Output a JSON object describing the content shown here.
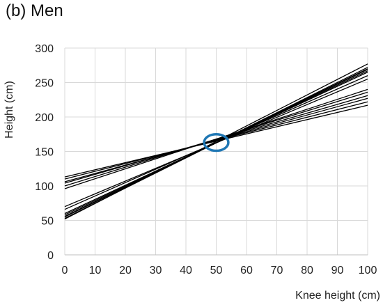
{
  "chart_data": {
    "type": "line",
    "title": "(b) Men",
    "xlabel": "Knee height (cm)",
    "ylabel": "Height (cm)",
    "xlim": [
      0,
      100
    ],
    "ylim": [
      0,
      300
    ],
    "xticks": [
      0,
      10,
      20,
      30,
      40,
      50,
      60,
      70,
      80,
      90,
      100
    ],
    "yticks": [
      0,
      50,
      100,
      150,
      200,
      250,
      300
    ],
    "grid": true,
    "legend": "none",
    "series": [
      {
        "x": [
          0,
          100
        ],
        "y": [
          113,
          217
        ]
      },
      {
        "x": [
          0,
          100
        ],
        "y": [
          110,
          222
        ]
      },
      {
        "x": [
          0,
          100
        ],
        "y": [
          106,
          227
        ]
      },
      {
        "x": [
          0,
          100
        ],
        "y": [
          104,
          231
        ]
      },
      {
        "x": [
          0,
          100
        ],
        "y": [
          100,
          236
        ]
      },
      {
        "x": [
          0,
          100
        ],
        "y": [
          96,
          240
        ]
      },
      {
        "x": [
          0,
          100
        ],
        "y": [
          70,
          255
        ]
      },
      {
        "x": [
          0,
          100
        ],
        "y": [
          66,
          260
        ]
      },
      {
        "x": [
          0,
          100
        ],
        "y": [
          60,
          265
        ]
      },
      {
        "x": [
          0,
          100
        ],
        "y": [
          58,
          267
        ]
      },
      {
        "x": [
          0,
          100
        ],
        "y": [
          56,
          269
        ]
      },
      {
        "x": [
          0,
          100
        ],
        "y": [
          55,
          270
        ]
      },
      {
        "x": [
          0,
          100
        ],
        "y": [
          53,
          272
        ]
      },
      {
        "x": [
          0,
          100
        ],
        "y": [
          52,
          277
        ]
      }
    ],
    "annotations": [
      {
        "shape": "ellipse",
        "center": [
          50,
          163
        ],
        "rx": 4,
        "ry": 12,
        "color": "#1f77b4"
      }
    ],
    "line_color": "#000000",
    "grid_color": "#d9d9d9"
  }
}
